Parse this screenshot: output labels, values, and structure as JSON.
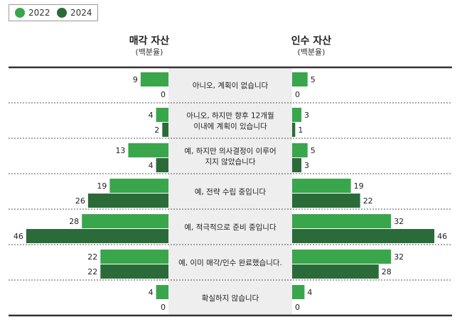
{
  "legend": {
    "items": [
      {
        "label": "2022",
        "color": "#3aa64c"
      },
      {
        "label": "2024",
        "color": "#2b6b3a"
      }
    ]
  },
  "headers": {
    "left": {
      "title": "매각 자산",
      "subtitle": "(백분율)"
    },
    "right": {
      "title": "인수 자산",
      "subtitle": "(백분율)"
    }
  },
  "chart_data": {
    "type": "bar",
    "orientation": "horizontal-butterfly",
    "categories": [
      [
        "아니오, 계획이 없습니다"
      ],
      [
        "아니오, 하지만 향후 12개월",
        "이내에 계획이 있습니다"
      ],
      [
        "예, 하지만 의사결정이 이루어",
        "지지 않았습니다"
      ],
      [
        "예, 전략 수립 중입니다"
      ],
      [
        "예, 적극적으로 준비 중입니다"
      ],
      [
        "예, 이미 매각/인수 완료했습니다."
      ],
      [
        "확실하지 않습니다"
      ]
    ],
    "panels": [
      {
        "name": "매각 자산",
        "series": [
          {
            "name": "2022",
            "color": "#3aa64c",
            "values": [
              9,
              4,
              13,
              19,
              28,
              22,
              4
            ]
          },
          {
            "name": "2024",
            "color": "#2b6b3a",
            "values": [
              0,
              2,
              4,
              26,
              46,
              22,
              0
            ]
          }
        ]
      },
      {
        "name": "인수 자산",
        "series": [
          {
            "name": "2022",
            "color": "#3aa64c",
            "values": [
              5,
              3,
              5,
              19,
              32,
              32,
              4
            ]
          },
          {
            "name": "2024",
            "color": "#2b6b3a",
            "values": [
              0,
              1,
              3,
              22,
              46,
              28,
              0
            ]
          }
        ]
      }
    ],
    "xlim": [
      0,
      46
    ],
    "grid": false,
    "legend_position": "top-left"
  }
}
